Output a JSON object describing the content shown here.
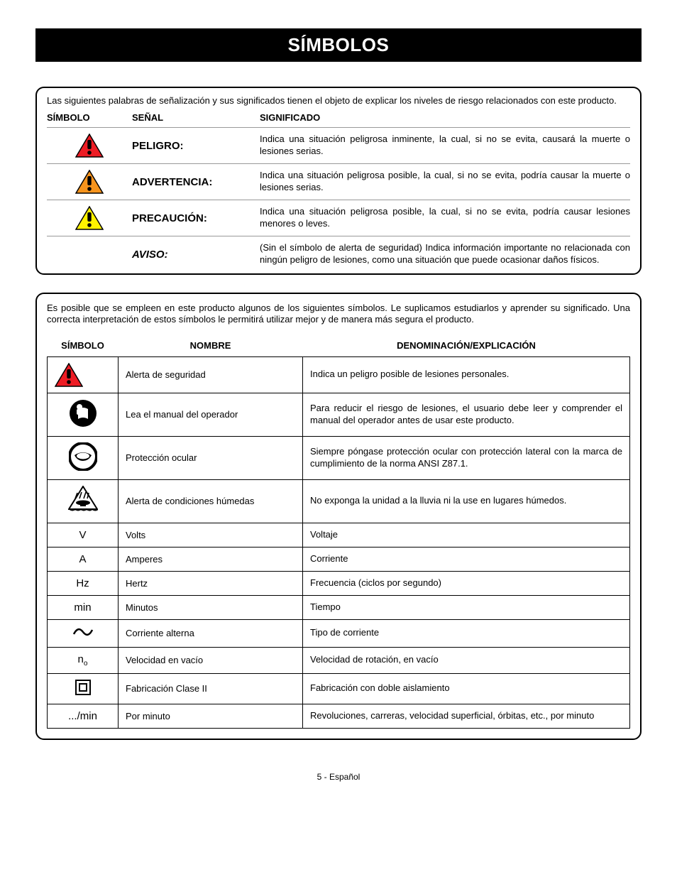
{
  "title": "SÍMBOLOS",
  "box1": {
    "intro": "Las siguientes palabras de señalización y sus significados tienen el objeto de explicar los niveles de riesgo relacionados con este producto.",
    "headers": {
      "c1": "SÍMBOLO",
      "c2": "SEÑAL",
      "c3": "SIGNIFICADO"
    },
    "rows": [
      {
        "icon": "tri-red",
        "signal": "PELIGRO:",
        "italic": false,
        "meaning": "Indica una situación peligrosa inminente, la cual, si no se evita, causará la muerte o lesiones serias."
      },
      {
        "icon": "tri-orange",
        "signal": "ADVERTENCIA:",
        "italic": false,
        "meaning": "Indica una situación peligrosa posible, la cual, si no se evita, podría causar la muerte o lesiones serias."
      },
      {
        "icon": "tri-yellow",
        "signal": "PRECAUCIÓN:",
        "italic": false,
        "meaning": "Indica una situación peligrosa posible, la cual, si no se evita, podría causar lesiones menores o leves."
      },
      {
        "icon": "",
        "signal": "AVISO:",
        "italic": true,
        "meaning": "(Sin el símbolo de alerta de seguridad) Indica información importante no relacionada con ningún peligro de lesiones, como una situación que puede ocasionar daños físicos."
      }
    ]
  },
  "box2": {
    "intro": "Es posible que se empleen en este producto algunos de los siguientes símbolos. Le suplicamos estudiarlos y aprender su significado. Una correcta interpretación de estos símbolos le permitirá utilizar mejor y de manera más segura el producto.",
    "headers": {
      "c1": "SÍMBOLO",
      "c2": "NOMBRE",
      "c3": "DENOMINACIÓN/EXPLICACIÓN"
    },
    "rows": [
      {
        "sym_type": "icon",
        "icon": "tri-red",
        "name": "Alerta de seguridad",
        "desc": "Indica un peligro posible de lesiones personales."
      },
      {
        "sym_type": "icon",
        "icon": "read-manual",
        "name": "Lea el manual del operador",
        "desc": "Para reducir el riesgo de lesiones, el usuario debe leer y comprender el manual del operador antes de usar este producto."
      },
      {
        "sym_type": "icon",
        "icon": "eye-protection",
        "name": "Protección ocular",
        "desc": "Siempre póngase protección ocular con protección lateral con la marca de cumplimiento de la norma ANSI Z87.1."
      },
      {
        "sym_type": "icon",
        "icon": "wet-alert",
        "name": "Alerta de condiciones húmedas",
        "desc": "No exponga la unidad a la lluvia ni la use en lugares húmedos."
      },
      {
        "sym_type": "text",
        "sym_text": "V",
        "name": "Volts",
        "desc": "Voltaje"
      },
      {
        "sym_type": "text",
        "sym_text": "A",
        "name": "Amperes",
        "desc": "Corriente"
      },
      {
        "sym_type": "text",
        "sym_text": "Hz",
        "name": "Hertz",
        "desc": "Frecuencia (ciclos por segundo)"
      },
      {
        "sym_type": "text",
        "sym_text": "min",
        "name": "Minutos",
        "desc": "Tiempo"
      },
      {
        "sym_type": "icon",
        "icon": "ac-wave",
        "name": "Corriente alterna",
        "desc": "Tipo de corriente"
      },
      {
        "sym_type": "html",
        "sym_html": "n<span class='sub'>o</span>",
        "name": "Velocidad en vacío",
        "desc": "Velocidad de rotación, en vacío"
      },
      {
        "sym_type": "icon",
        "icon": "class2",
        "name": "Fabricación Clase II",
        "desc": "Fabricación con doble aislamiento"
      },
      {
        "sym_type": "text",
        "sym_text": ".../min",
        "name": "Por minuto",
        "desc": "Revoluciones, carreras, velocidad superficial, órbitas, etc., por minuto"
      }
    ]
  },
  "footer": "5 - Español",
  "colors": {
    "red": "#ed1c24",
    "orange": "#f7941d",
    "yellow": "#fff200",
    "black": "#000000"
  }
}
